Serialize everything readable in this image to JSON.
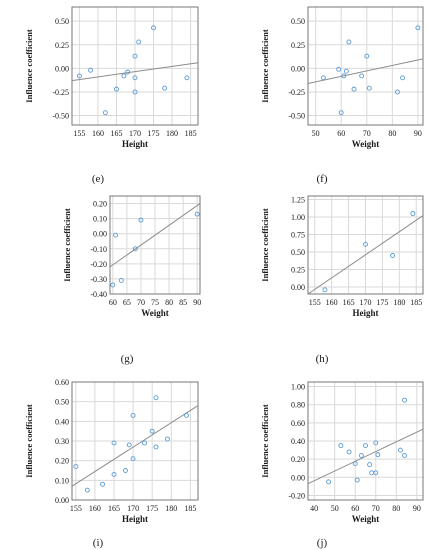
{
  "figure": {
    "panel_labels": [
      "(e)",
      "(f)",
      "(g)",
      "(h)",
      "(i)",
      "(j)"
    ]
  },
  "chart_data": [
    {
      "type": "scatter",
      "label": "(e)",
      "xlabel": "Height",
      "ylabel": "Influence coefficient",
      "xlim": [
        153,
        187
      ],
      "ylim": [
        -0.6,
        0.65
      ],
      "xticks": [
        155,
        160,
        165,
        170,
        175,
        180,
        185
      ],
      "yticks": [
        -0.5,
        -0.25,
        0.0,
        0.25,
        0.5
      ],
      "ytick_labels": [
        "-0.50",
        "-0.25",
        "0.00",
        "0.25",
        "0.50"
      ],
      "points": [
        [
          155,
          -0.08
        ],
        [
          158,
          -0.02
        ],
        [
          162,
          -0.47
        ],
        [
          165,
          -0.22
        ],
        [
          167,
          -0.08
        ],
        [
          168,
          -0.04
        ],
        [
          170,
          0.13
        ],
        [
          170,
          -0.1
        ],
        [
          170,
          -0.25
        ],
        [
          171,
          0.28
        ],
        [
          175,
          0.43
        ],
        [
          178,
          -0.21
        ],
        [
          184,
          -0.1
        ]
      ],
      "fit_line": [
        [
          153,
          -0.13
        ],
        [
          187,
          0.06
        ]
      ],
      "grid": true,
      "point_color": "#5b9bd5"
    },
    {
      "type": "scatter",
      "label": "(f)",
      "xlabel": "Weight",
      "ylabel": "Influence coefficient",
      "xlim": [
        47,
        92
      ],
      "ylim": [
        -0.6,
        0.65
      ],
      "xticks": [
        50,
        60,
        70,
        80,
        90
      ],
      "yticks": [
        -0.5,
        -0.25,
        0.0,
        0.25,
        0.5
      ],
      "ytick_labels": [
        "-0.50",
        "-0.25",
        "0.00",
        "0.25",
        "0.50"
      ],
      "points": [
        [
          53,
          -0.1
        ],
        [
          59,
          -0.01
        ],
        [
          60,
          -0.47
        ],
        [
          61,
          -0.08
        ],
        [
          62,
          -0.03
        ],
        [
          63,
          0.28
        ],
        [
          65,
          -0.22
        ],
        [
          68,
          -0.08
        ],
        [
          70,
          0.13
        ],
        [
          71,
          -0.21
        ],
        [
          82,
          -0.25
        ],
        [
          84,
          -0.1
        ],
        [
          90,
          0.43
        ]
      ],
      "fit_line": [
        [
          47,
          -0.16
        ],
        [
          92,
          0.1
        ]
      ],
      "grid": true,
      "point_color": "#5b9bd5"
    },
    {
      "type": "scatter",
      "label": "(g)",
      "xlabel": "Weight",
      "ylabel": "Influence coefficient",
      "xlim": [
        59,
        91
      ],
      "ylim": [
        -0.4,
        0.25
      ],
      "xticks": [
        60,
        65,
        70,
        75,
        80,
        85,
        90
      ],
      "yticks": [
        -0.4,
        -0.3,
        -0.2,
        -0.1,
        0.0,
        0.1,
        0.2
      ],
      "ytick_labels": [
        "-0.40",
        "-0.30",
        "-0.20",
        "-0.10",
        "0.00",
        "0.10",
        "0.20"
      ],
      "points": [
        [
          60,
          -0.34
        ],
        [
          61,
          -0.01
        ],
        [
          63,
          -0.31
        ],
        [
          68,
          -0.1
        ],
        [
          70,
          0.09
        ],
        [
          90,
          0.13
        ]
      ],
      "fit_line": [
        [
          59,
          -0.22
        ],
        [
          91,
          0.2
        ]
      ],
      "grid": true,
      "point_color": "#5b9bd5"
    },
    {
      "type": "scatter",
      "label": "(h)",
      "xlabel": "Height",
      "ylabel": "Influence coefficient",
      "xlim": [
        153,
        187
      ],
      "ylim": [
        -0.1,
        1.3
      ],
      "xticks": [
        155,
        160,
        165,
        170,
        175,
        180,
        185
      ],
      "yticks": [
        0.0,
        0.25,
        0.5,
        0.75,
        1.0,
        1.25
      ],
      "ytick_labels": [
        "0.00",
        "0.25",
        "0.50",
        "0.75",
        "1.00",
        "1.25"
      ],
      "points": [
        [
          158,
          -0.04
        ],
        [
          170,
          0.61
        ],
        [
          178,
          0.45
        ],
        [
          184,
          1.05
        ]
      ],
      "fit_line": [
        [
          153,
          -0.1
        ],
        [
          187,
          1.02
        ]
      ],
      "grid": true,
      "point_color": "#5b9bd5"
    },
    {
      "type": "scatter",
      "label": "(i)",
      "xlabel": "Height",
      "ylabel": "Influence coefficient",
      "xlim": [
        154,
        187
      ],
      "ylim": [
        0.0,
        0.6
      ],
      "xticks": [
        155,
        160,
        165,
        170,
        175,
        180,
        185
      ],
      "yticks": [
        0.0,
        0.1,
        0.2,
        0.3,
        0.4,
        0.5,
        0.6
      ],
      "ytick_labels": [
        "0.00",
        "0.10",
        "0.20",
        "0.30",
        "0.40",
        "0.50",
        "0.60"
      ],
      "points": [
        [
          155,
          0.17
        ],
        [
          158,
          0.05
        ],
        [
          162,
          0.08
        ],
        [
          165,
          0.13
        ],
        [
          165,
          0.29
        ],
        [
          168,
          0.15
        ],
        [
          169,
          0.28
        ],
        [
          170,
          0.43
        ],
        [
          170,
          0.21
        ],
        [
          173,
          0.29
        ],
        [
          175,
          0.35
        ],
        [
          176,
          0.52
        ],
        [
          176,
          0.27
        ],
        [
          179,
          0.31
        ],
        [
          184,
          0.43
        ]
      ],
      "fit_line": [
        [
          154,
          0.07
        ],
        [
          187,
          0.48
        ]
      ],
      "grid": true,
      "point_color": "#5b9bd5"
    },
    {
      "type": "scatter",
      "label": "(j)",
      "xlabel": "Weight",
      "ylabel": "Influence coefficient",
      "xlim": [
        37,
        93
      ],
      "ylim": [
        -0.25,
        1.05
      ],
      "xticks": [
        40,
        50,
        60,
        70,
        80,
        90
      ],
      "yticks": [
        -0.2,
        0.0,
        0.2,
        0.4,
        0.6,
        0.8,
        1.0
      ],
      "ytick_labels": [
        "-0.20",
        "0.00",
        "0.20",
        "0.40",
        "0.60",
        "0.80",
        "1.00"
      ],
      "points": [
        [
          47,
          -0.05
        ],
        [
          53,
          0.35
        ],
        [
          57,
          0.28
        ],
        [
          60,
          0.15
        ],
        [
          61,
          -0.03
        ],
        [
          63,
          0.24
        ],
        [
          65,
          0.35
        ],
        [
          67,
          0.14
        ],
        [
          68,
          0.05
        ],
        [
          70,
          0.38
        ],
        [
          70,
          0.05
        ],
        [
          71,
          0.25
        ],
        [
          82,
          0.3
        ],
        [
          84,
          0.85
        ],
        [
          84,
          0.24
        ]
      ],
      "fit_line": [
        [
          37,
          -0.07
        ],
        [
          93,
          0.53
        ]
      ],
      "grid": true,
      "point_color": "#5b9bd5"
    }
  ]
}
